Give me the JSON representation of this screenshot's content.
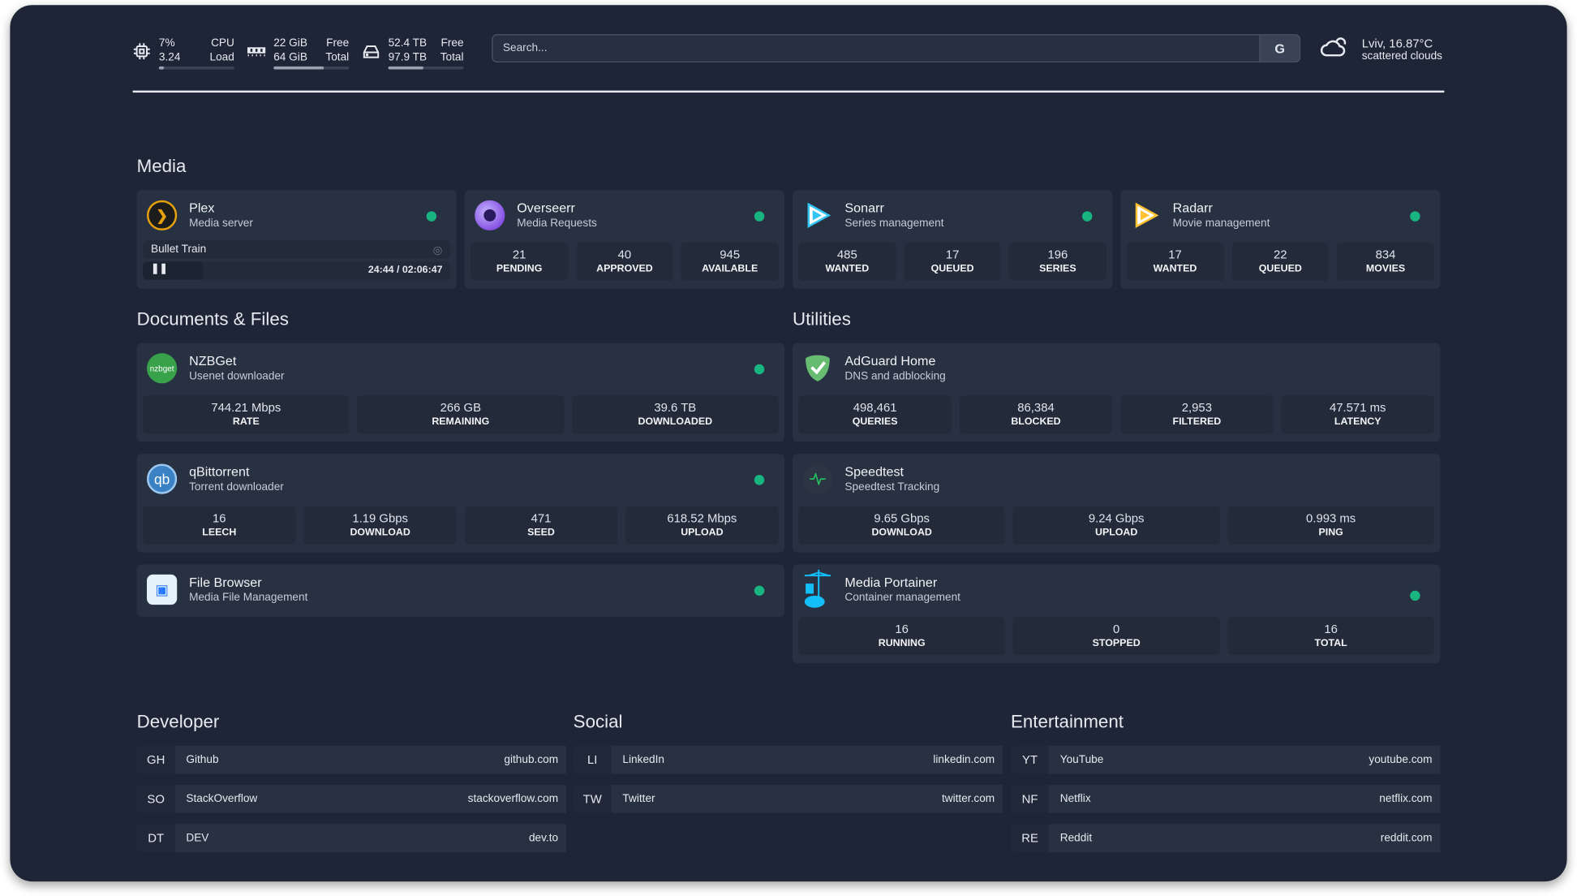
{
  "system": {
    "cpu": {
      "icon": "cpu-icon",
      "value": "7%",
      "load": "3.24",
      "label1": "CPU",
      "label2": "Load",
      "fill": 7
    },
    "memory": {
      "icon": "memory-icon",
      "free": "22 GiB",
      "total": "64 GiB",
      "label1": "Free",
      "label2": "Total",
      "fill": 66
    },
    "disk": {
      "icon": "disk-icon",
      "free": "52.4 TB",
      "total": "97.9 TB",
      "label1": "Free",
      "label2": "Total",
      "fill": 46
    }
  },
  "search": {
    "placeholder": "Search...",
    "provider": "G"
  },
  "weather": {
    "icon": "cloud-icon",
    "location": "Lviv, 16.87°C",
    "condition": "scattered clouds"
  },
  "sections": {
    "media": "Media",
    "docs": "Documents & Files",
    "utilities": "Utilities",
    "developer": "Developer",
    "social": "Social",
    "entertainment": "Entertainment"
  },
  "media": [
    {
      "name": "Plex",
      "desc": "Media server",
      "now_playing": "Bullet Train",
      "time": "24:44 / 02:06:47",
      "progress": 19.5
    },
    {
      "name": "Overseerr",
      "desc": "Media Requests",
      "stats": [
        [
          "21",
          "PENDING"
        ],
        [
          "40",
          "APPROVED"
        ],
        [
          "945",
          "AVAILABLE"
        ]
      ]
    },
    {
      "name": "Sonarr",
      "desc": "Series management",
      "stats": [
        [
          "485",
          "WANTED"
        ],
        [
          "17",
          "QUEUED"
        ],
        [
          "196",
          "SERIES"
        ]
      ]
    },
    {
      "name": "Radarr",
      "desc": "Movie management",
      "stats": [
        [
          "17",
          "WANTED"
        ],
        [
          "22",
          "QUEUED"
        ],
        [
          "834",
          "MOVIES"
        ]
      ]
    }
  ],
  "docs": [
    {
      "name": "NZBGet",
      "desc": "Usenet downloader",
      "logo": "nzbget",
      "stats": [
        [
          "744.21 Mbps",
          "RATE"
        ],
        [
          "266 GB",
          "REMAINING"
        ],
        [
          "39.6 TB",
          "DOWNLOADED"
        ]
      ]
    },
    {
      "name": "qBittorrent",
      "desc": "Torrent downloader",
      "logo": "qb",
      "stats": [
        [
          "16",
          "LEECH"
        ],
        [
          "1.19 Gbps",
          "DOWNLOAD"
        ],
        [
          "471",
          "SEED"
        ],
        [
          "618.52 Mbps",
          "UPLOAD"
        ]
      ]
    },
    {
      "name": "File Browser",
      "desc": "Media File Management"
    }
  ],
  "utilities": [
    {
      "name": "AdGuard Home",
      "desc": "DNS and adblocking",
      "stats": [
        [
          "498,461",
          "QUERIES"
        ],
        [
          "86,384",
          "BLOCKED"
        ],
        [
          "2,953",
          "FILTERED"
        ],
        [
          "47.571 ms",
          "LATENCY"
        ]
      ]
    },
    {
      "name": "Speedtest",
      "desc": "Speedtest Tracking",
      "stats": [
        [
          "9.65 Gbps",
          "DOWNLOAD"
        ],
        [
          "9.24 Gbps",
          "UPLOAD"
        ],
        [
          "0.993 ms",
          "PING"
        ]
      ]
    },
    {
      "name": "Media Portainer",
      "desc": "Container management",
      "stats": [
        [
          "16",
          "RUNNING"
        ],
        [
          "0",
          "STOPPED"
        ],
        [
          "16",
          "TOTAL"
        ]
      ]
    }
  ],
  "bookmarks": {
    "developer": [
      {
        "abbr": "GH",
        "name": "Github",
        "url": "github.com"
      },
      {
        "abbr": "SO",
        "name": "StackOverflow",
        "url": "stackoverflow.com"
      },
      {
        "abbr": "DT",
        "name": "DEV",
        "url": "dev.to"
      }
    ],
    "social": [
      {
        "abbr": "LI",
        "name": "LinkedIn",
        "url": "linkedin.com"
      },
      {
        "abbr": "TW",
        "name": "Twitter",
        "url": "twitter.com"
      }
    ],
    "entertainment": [
      {
        "abbr": "YT",
        "name": "YouTube",
        "url": "youtube.com"
      },
      {
        "abbr": "NF",
        "name": "Netflix",
        "url": "netflix.com"
      },
      {
        "abbr": "RE",
        "name": "Reddit",
        "url": "reddit.com"
      }
    ]
  },
  "colors": {
    "status_ok": "#19b581",
    "background": "#1e2537",
    "card": "#283142"
  }
}
